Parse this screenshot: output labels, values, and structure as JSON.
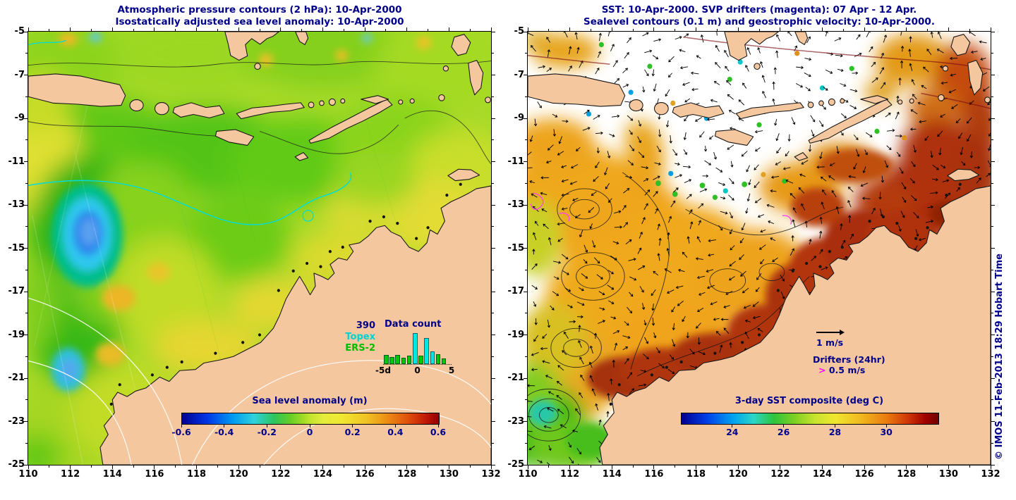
{
  "figure": {
    "left_panel": {
      "title_line1": "Atmospheric pressure contours (2 hPa): 10-Apr-2000",
      "title_line2": "Isostatically adjusted sea level anomaly: 10-Apr-2000",
      "inset": {
        "count": "390"
      }
    },
    "right_panel": {
      "title_line1": "SST: 10-Apr-2000. SVP drifters (magenta): 07 Apr - 12 Apr.",
      "title_line2": "Sealevel contours (0.1 m) and geostrophic velocity: 10-Apr-2000.",
      "legend": {
        "velocity": "1 m/s",
        "drifters": "Drifters (24hr)",
        "gt": ">",
        "speed": "0.5 m/s"
      }
    },
    "credit": "© IMOS 11-Feb-2013 18:29 Hobart Time",
    "colors": {
      "title_navy": "#00008B",
      "topex_cyan": "#00D2D2",
      "ers2_green": "#00BE00",
      "drifter_magenta": "#FF00FF",
      "track_dark_red": "#7C0E12",
      "land": "#F4C79E"
    }
  },
  "chart_data": [
    {
      "id": "sea-level-anomaly-map",
      "type": "heatmap",
      "title": "Atmospheric pressure contours (2 hPa): 10-Apr-2000",
      "subtitle": "Isostatically adjusted sea level anomaly: 10-Apr-2000",
      "xlim": [
        110,
        132
      ],
      "ylim": [
        -25,
        -5
      ],
      "x_ticks": [
        110,
        112,
        114,
        116,
        118,
        120,
        122,
        124,
        126,
        128,
        130,
        132
      ],
      "y_ticks": [
        -5,
        -7,
        -9,
        -11,
        -13,
        -15,
        -17,
        -19,
        -21,
        -23,
        -25
      ],
      "colorbar": {
        "label": "Sea level anomaly (m)",
        "range": [
          -0.6,
          0.6
        ],
        "ticks": [
          -0.6,
          -0.4,
          -0.2,
          0,
          0.2,
          0.4,
          0.6
        ]
      }
    },
    {
      "id": "data-count-histogram",
      "type": "bar",
      "title": "Data count",
      "annotation": "390",
      "x": [
        -5,
        -4,
        -3,
        -2,
        -1,
        0,
        1,
        2,
        3,
        4,
        5
      ],
      "x_tick_labels": [
        "-5d",
        "0",
        "5"
      ],
      "values_unit": "relative",
      "series": [
        {
          "name": "Topex",
          "color": "#00E5E5",
          "values": [
            0,
            0,
            0,
            0,
            0,
            1.0,
            0,
            0.84,
            0.41,
            0,
            0
          ]
        },
        {
          "name": "ERS-2",
          "color": "#00C800",
          "values": [
            0.3,
            0.23,
            0.3,
            0.2,
            0.27,
            0,
            0.27,
            0,
            0,
            0.32,
            0.18
          ]
        }
      ]
    },
    {
      "id": "sst-map",
      "type": "heatmap",
      "title": "SST: 10-Apr-2000. SVP drifters (magenta): 07 Apr - 12 Apr.",
      "subtitle": "Sealevel contours (0.1 m) and geostrophic velocity: 10-Apr-2000.",
      "xlim": [
        110,
        132
      ],
      "ylim": [
        -25,
        -5
      ],
      "x_ticks": [
        110,
        112,
        114,
        116,
        118,
        120,
        122,
        124,
        126,
        128,
        130,
        132
      ],
      "y_ticks": [
        -5,
        -7,
        -9,
        -11,
        -13,
        -15,
        -17,
        -19,
        -21,
        -23,
        -25
      ],
      "colorbar": {
        "label": "3-day SST composite (deg C)",
        "range": [
          22,
          32
        ],
        "ticks": [
          24,
          26,
          28,
          30
        ]
      },
      "legend": {
        "velocity_scale": "1 m/s",
        "drifters": "Drifters (24hr)",
        "drifter_speed": "> 0.5 m/s"
      }
    }
  ]
}
